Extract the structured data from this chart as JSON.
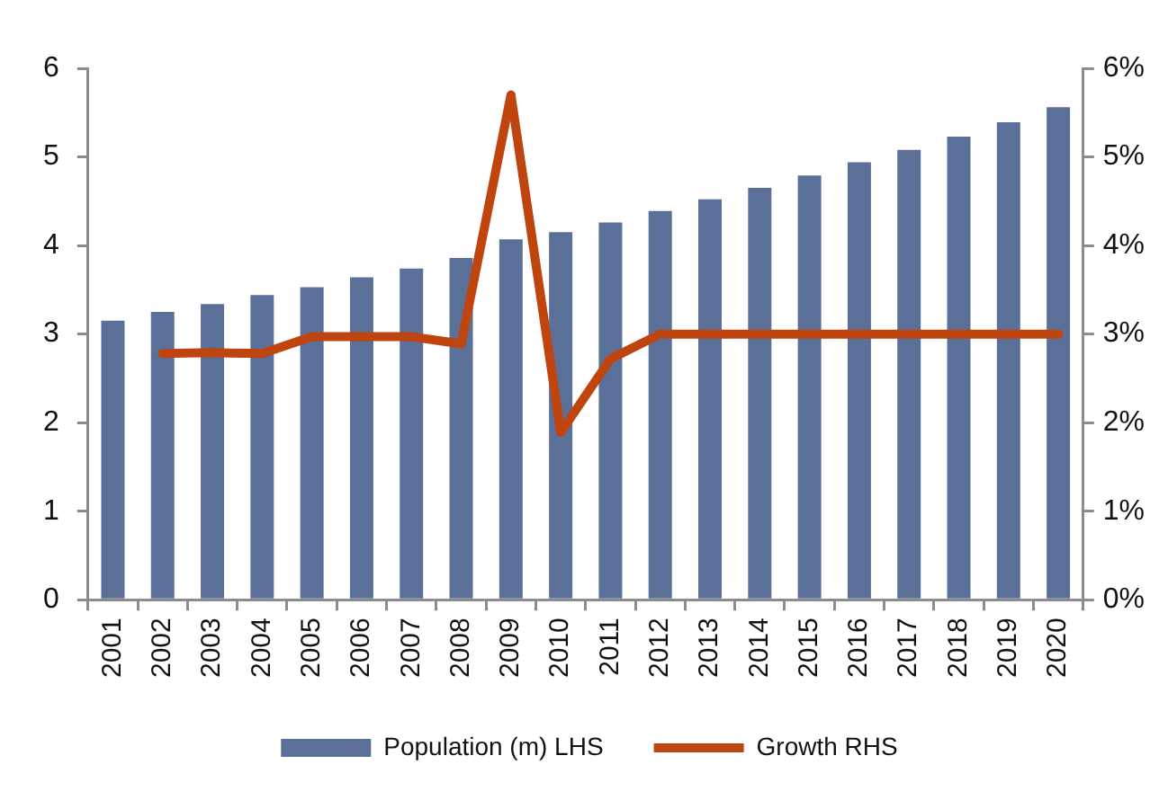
{
  "chart_data": {
    "type": "bar",
    "categories": [
      "2001",
      "2002",
      "2003",
      "2004",
      "2005",
      "2006",
      "2007",
      "2008",
      "2009",
      "2010",
      "2011",
      "2012",
      "2013",
      "2014",
      "2015",
      "2016",
      "2017",
      "2018",
      "2019",
      "2020"
    ],
    "series": [
      {
        "name": "Population (m) LHS",
        "color": "#5b7098",
        "values": [
          3.15,
          3.25,
          3.34,
          3.44,
          3.53,
          3.64,
          3.74,
          3.86,
          4.07,
          4.15,
          4.26,
          4.39,
          4.52,
          4.65,
          4.79,
          4.94,
          5.08,
          5.23,
          5.39,
          5.56
        ]
      },
      {
        "name": "Growth RHS",
        "type": "line",
        "axis": "y2",
        "color": "#c0440e",
        "values": [
          null,
          2.78,
          2.79,
          2.78,
          2.97,
          2.97,
          2.97,
          2.89,
          5.7,
          1.89,
          2.72,
          3.0,
          3.0,
          3.0,
          3.0,
          3.0,
          3.0,
          3.0,
          3.0,
          3.0
        ]
      }
    ],
    "ylim": [
      0,
      6
    ],
    "yticks": [
      0,
      1,
      2,
      3,
      4,
      5,
      6
    ],
    "y2lim": [
      0,
      6
    ],
    "y2ticks": [
      {
        "value": 0,
        "label": "0%"
      },
      {
        "value": 1,
        "label": "1%"
      },
      {
        "value": 2,
        "label": "2%"
      },
      {
        "value": 3,
        "label": "3%"
      },
      {
        "value": 4,
        "label": "4%"
      },
      {
        "value": 5,
        "label": "5%"
      },
      {
        "value": 6,
        "label": "6%"
      }
    ],
    "legend": "bottom",
    "grid": false,
    "marker": "none"
  }
}
